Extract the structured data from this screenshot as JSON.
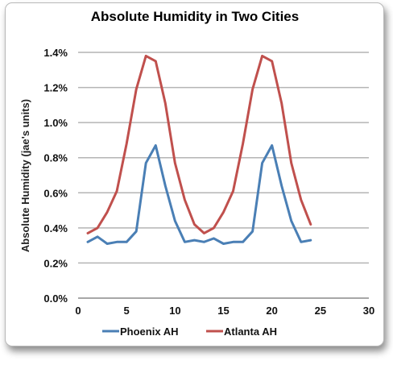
{
  "chart_data": {
    "type": "line",
    "title": "Absolute Humidity in Two Cities",
    "xlabel": "",
    "ylabel": "Absolute Humidity (jae's units)",
    "xlim": [
      0,
      30
    ],
    "ylim": [
      0,
      0.014
    ],
    "xticks": [
      0,
      5,
      10,
      15,
      20,
      25,
      30
    ],
    "xtick_labels": [
      "0",
      "5",
      "10",
      "15",
      "20",
      "25",
      "30"
    ],
    "yticks": [
      0,
      0.002,
      0.004,
      0.006,
      0.008,
      0.01,
      0.012,
      0.014
    ],
    "ytick_labels": [
      "0.0%",
      "0.2%",
      "0.4%",
      "0.6%",
      "0.8%",
      "1.0%",
      "1.2%",
      "1.4%"
    ],
    "grid": "horizontal",
    "legend_position": "bottom",
    "series": [
      {
        "name": "Phoenix AH",
        "color": "#4a7fb5",
        "x": [
          1,
          2,
          3,
          4,
          5,
          6,
          7,
          8,
          9,
          10,
          11,
          12,
          13,
          14,
          15,
          16,
          17,
          18,
          19,
          20,
          21,
          22,
          23,
          24
        ],
        "values": [
          0.0032,
          0.0035,
          0.0031,
          0.0032,
          0.0032,
          0.0038,
          0.0077,
          0.0087,
          0.0064,
          0.0044,
          0.0032,
          0.0033,
          0.0032,
          0.0034,
          0.0031,
          0.0032,
          0.0032,
          0.0038,
          0.0077,
          0.0087,
          0.0064,
          0.0044,
          0.0032,
          0.0033
        ]
      },
      {
        "name": "Atlanta AH",
        "color": "#c0504d",
        "x": [
          1,
          2,
          3,
          4,
          5,
          6,
          7,
          8,
          9,
          10,
          11,
          12,
          13,
          14,
          15,
          16,
          17,
          18,
          19,
          20,
          21,
          22,
          23,
          24
        ],
        "values": [
          0.0037,
          0.004,
          0.0049,
          0.0061,
          0.0088,
          0.0119,
          0.0138,
          0.0135,
          0.0111,
          0.0077,
          0.0056,
          0.0042,
          0.0037,
          0.004,
          0.0049,
          0.0061,
          0.0088,
          0.0119,
          0.0138,
          0.0135,
          0.0111,
          0.0077,
          0.0056,
          0.0042
        ]
      }
    ]
  }
}
